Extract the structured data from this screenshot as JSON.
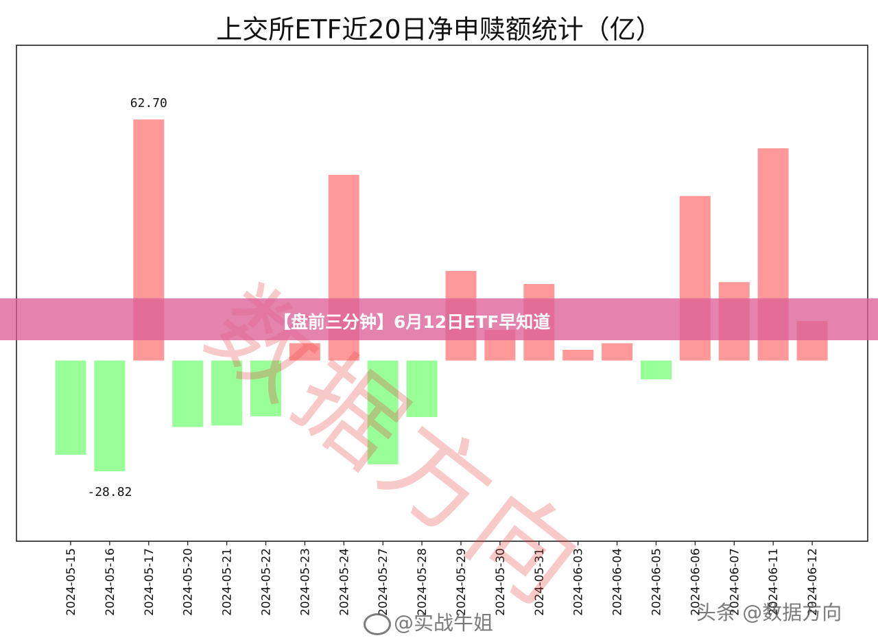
{
  "chart_data": {
    "type": "bar",
    "title": "上交所ETF近20日净申赎额统计（亿）",
    "categories": [
      "2024-05-15",
      "2024-05-16",
      "2024-05-17",
      "2024-05-20",
      "2024-05-21",
      "2024-05-22",
      "2024-05-23",
      "2024-05-24",
      "2024-05-27",
      "2024-05-28",
      "2024-05-29",
      "2024-05-30",
      "2024-05-31",
      "2024-06-03",
      "2024-06-04",
      "2024-06-05",
      "2024-06-06",
      "2024-06-07",
      "2024-06-11",
      "2024-06-12"
    ],
    "values": [
      -24.5,
      -28.82,
      62.7,
      -17.3,
      -16.9,
      -14.5,
      4.5,
      48.3,
      -27.0,
      -14.7,
      23.3,
      8.0,
      19.9,
      2.8,
      4.5,
      -4.9,
      42.8,
      20.4,
      55.2,
      10.3
    ],
    "data_labels": [
      {
        "category": "2024-05-17",
        "text": "62.70"
      },
      {
        "category": "2024-05-16",
        "text": "-28.82"
      }
    ],
    "positive_color": "#ff9999",
    "negative_color": "#99ff99",
    "ylim": [
      -47,
      82
    ],
    "grid": false,
    "xlabel": "",
    "ylabel": ""
  },
  "watermark": "数据方向",
  "banner": {
    "text": "【盘前三分钟】6月12日ETF早知道"
  },
  "credits": {
    "left": "@实战牛姐",
    "right": "头条 @数据方向"
  }
}
